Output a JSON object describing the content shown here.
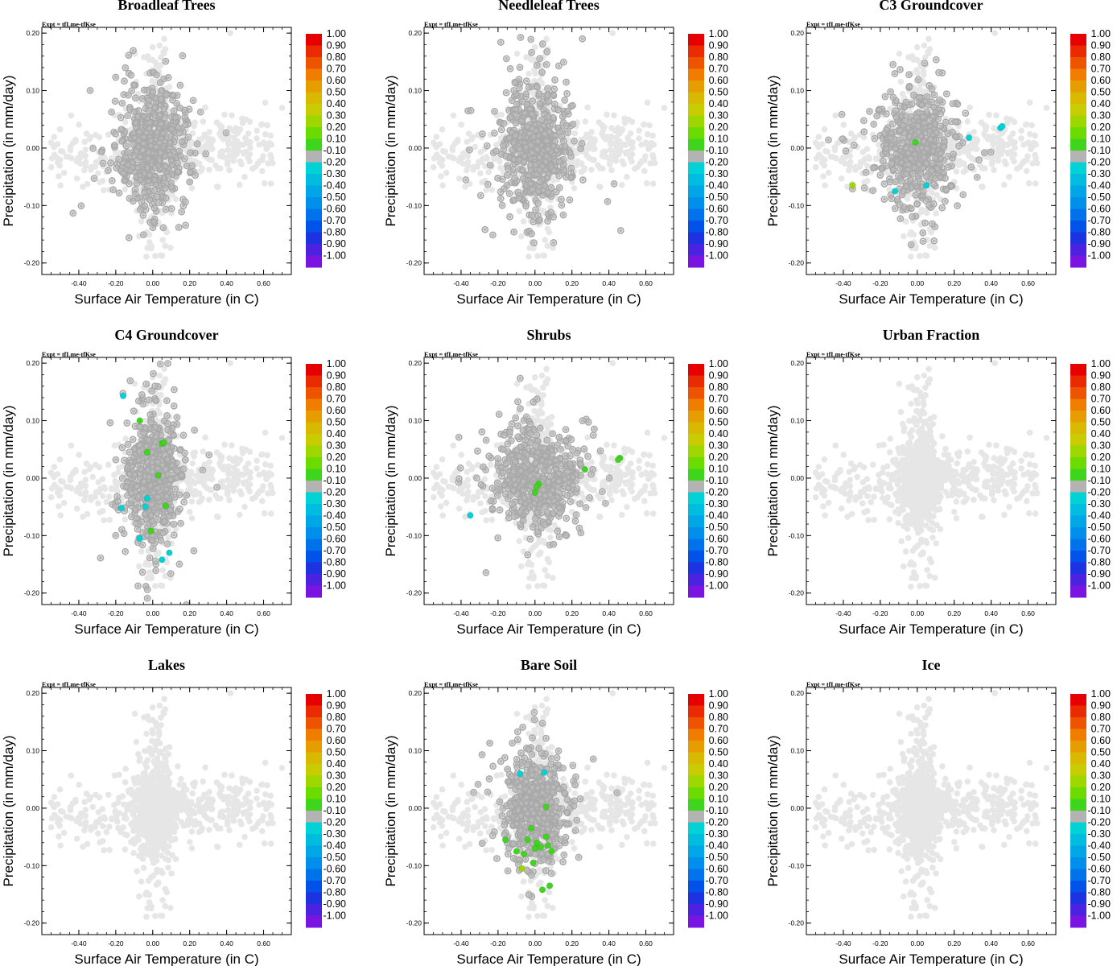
{
  "figure": {
    "expt_label": "Expt = tfLme-tfKse",
    "xlabel": "Surface Air Temperature (in C)",
    "ylabel": "Precipitation (in mm/day)",
    "colors": {
      "point_light": "#e6e6e6",
      "point_dark": "#a9a9a9",
      "axis": "#000000"
    }
  },
  "chart_data": [
    {
      "type": "scatter",
      "title": "Broadleaf Trees",
      "xlabel": "Surface Air Temperature (in C)",
      "ylabel": "Precipitation (in mm/day)",
      "xlim": [
        -0.6,
        0.75
      ],
      "ylim": [
        -0.22,
        0.21
      ],
      "xticks": [
        "-0.40",
        "-0.20",
        "0.00",
        "0.20",
        "0.40",
        "0.60"
      ],
      "yticks": [
        "-0.20",
        "-0.10",
        "0.00",
        "0.10",
        "0.20"
      ],
      "background_cloud": "light-grey, all grid cells",
      "dark_spread": [
        0.09,
        0.055
      ],
      "highlights": []
    },
    {
      "type": "scatter",
      "title": "Needleleaf Trees",
      "xlabel": "Surface Air Temperature (in C)",
      "ylabel": "Precipitation (in mm/day)",
      "xlim": [
        -0.6,
        0.75
      ],
      "ylim": [
        -0.22,
        0.21
      ],
      "xticks": [
        "-0.40",
        "-0.20",
        "0.00",
        "0.20",
        "0.40",
        "0.60"
      ],
      "yticks": [
        "-0.20",
        "-0.10",
        "0.00",
        "0.10",
        "0.20"
      ],
      "background_cloud": "light-grey, all grid cells",
      "dark_spread": [
        0.09,
        0.055
      ],
      "highlights": []
    },
    {
      "type": "scatter",
      "title": "C3 Groundcover",
      "xlabel": "Surface Air Temperature (in C)",
      "ylabel": "Precipitation (in mm/day)",
      "xlim": [
        -0.6,
        0.75
      ],
      "ylim": [
        -0.22,
        0.21
      ],
      "xticks": [
        "-0.40",
        "-0.20",
        "0.00",
        "0.20",
        "0.40",
        "0.60"
      ],
      "yticks": [
        "-0.20",
        "-0.10",
        "0.00",
        "0.10",
        "0.20"
      ],
      "background_cloud": "light-grey, all grid cells",
      "dark_spread": [
        0.1,
        0.045
      ],
      "highlights": [
        {
          "x": -0.01,
          "y": 0.01,
          "corr": 0.15
        },
        {
          "x": -0.35,
          "y": -0.065,
          "corr": 0.35
        },
        {
          "x": 0.45,
          "y": 0.035,
          "corr": -0.2
        },
        {
          "x": 0.46,
          "y": 0.038,
          "corr": -0.2
        },
        {
          "x": -0.12,
          "y": -0.075,
          "corr": -0.2
        },
        {
          "x": 0.05,
          "y": -0.065,
          "corr": -0.2
        },
        {
          "x": 0.28,
          "y": 0.018,
          "corr": -0.2
        }
      ]
    },
    {
      "type": "scatter",
      "title": "C4 Groundcover",
      "xlabel": "Surface Air Temperature (in C)",
      "ylabel": "Precipitation (in mm/day)",
      "xlim": [
        -0.6,
        0.75
      ],
      "ylim": [
        -0.22,
        0.21
      ],
      "xticks": [
        "-0.40",
        "-0.20",
        "0.00",
        "0.20",
        "0.40",
        "0.60"
      ],
      "yticks": [
        "-0.20",
        "-0.10",
        "0.00",
        "0.10",
        "0.20"
      ],
      "background_cloud": "light-grey, all grid cells",
      "dark_spread": [
        0.075,
        0.06
      ],
      "highlights": [
        {
          "x": -0.07,
          "y": 0.1,
          "corr": 0.15
        },
        {
          "x": 0.05,
          "y": 0.06,
          "corr": 0.15
        },
        {
          "x": 0.06,
          "y": 0.062,
          "corr": 0.15
        },
        {
          "x": -0.03,
          "y": 0.045,
          "corr": 0.15
        },
        {
          "x": 0.03,
          "y": 0.005,
          "corr": 0.15
        },
        {
          "x": 0.07,
          "y": -0.048,
          "corr": 0.15
        },
        {
          "x": -0.01,
          "y": -0.092,
          "corr": 0.15
        },
        {
          "x": -0.16,
          "y": 0.143,
          "corr": -0.2
        },
        {
          "x": -0.17,
          "y": -0.052,
          "corr": -0.2
        },
        {
          "x": -0.04,
          "y": -0.05,
          "corr": -0.2
        },
        {
          "x": -0.07,
          "y": -0.105,
          "corr": -0.2
        },
        {
          "x": 0.05,
          "y": -0.142,
          "corr": -0.2
        },
        {
          "x": 0.09,
          "y": -0.13,
          "corr": -0.2
        },
        {
          "x": -0.03,
          "y": -0.035,
          "corr": -0.2
        }
      ]
    },
    {
      "type": "scatter",
      "title": "Shrubs",
      "xlabel": "Surface Air Temperature (in C)",
      "ylabel": "Precipitation (in mm/day)",
      "xlim": [
        -0.6,
        0.75
      ],
      "ylim": [
        -0.22,
        0.21
      ],
      "xticks": [
        "-0.40",
        "-0.20",
        "0.00",
        "0.20",
        "0.40",
        "0.60"
      ],
      "yticks": [
        "-0.20",
        "-0.10",
        "0.00",
        "0.10",
        "0.20"
      ],
      "background_cloud": "light-grey, all grid cells",
      "dark_spread": [
        0.12,
        0.045
      ],
      "highlights": [
        {
          "x": 0.46,
          "y": 0.035,
          "corr": 0.15
        },
        {
          "x": 0.45,
          "y": 0.032,
          "corr": 0.15
        },
        {
          "x": 0.27,
          "y": 0.015,
          "corr": 0.15
        },
        {
          "x": 0.02,
          "y": -0.01,
          "corr": 0.15
        },
        {
          "x": 0.01,
          "y": -0.015,
          "corr": 0.15
        },
        {
          "x": 0.0,
          "y": -0.025,
          "corr": 0.15
        },
        {
          "x": -0.35,
          "y": -0.065,
          "corr": -0.2
        }
      ]
    },
    {
      "type": "scatter",
      "title": "Urban Fraction",
      "xlabel": "Surface Air Temperature (in C)",
      "ylabel": "Precipitation (in mm/day)",
      "xlim": [
        -0.6,
        0.75
      ],
      "ylim": [
        -0.22,
        0.21
      ],
      "xticks": [
        "-0.40",
        "-0.20",
        "0.00",
        "0.20",
        "0.40",
        "0.60"
      ],
      "yticks": [
        "-0.20",
        "-0.10",
        "0.00",
        "0.10",
        "0.20"
      ],
      "background_cloud": "light-grey, all grid cells",
      "dark_spread": null,
      "highlights": []
    },
    {
      "type": "scatter",
      "title": "Lakes",
      "xlabel": "Surface Air Temperature (in C)",
      "ylabel": "Precipitation (in mm/day)",
      "xlim": [
        -0.6,
        0.75
      ],
      "ylim": [
        -0.22,
        0.21
      ],
      "xticks": [
        "-0.40",
        "-0.20",
        "0.00",
        "0.20",
        "0.40",
        "0.60"
      ],
      "yticks": [
        "-0.20",
        "-0.10",
        "0.00",
        "0.10",
        "0.20"
      ],
      "background_cloud": "light-grey, all grid cells",
      "dark_spread": null,
      "highlights": []
    },
    {
      "type": "scatter",
      "title": "Bare Soil",
      "xlabel": "Surface Air Temperature (in C)",
      "ylabel": "Precipitation (in mm/day)",
      "xlim": [
        -0.6,
        0.75
      ],
      "ylim": [
        -0.22,
        0.21
      ],
      "xticks": [
        "-0.40",
        "-0.20",
        "0.00",
        "0.20",
        "0.40",
        "0.60"
      ],
      "yticks": [
        "-0.20",
        "-0.10",
        "0.00",
        "0.10",
        "0.20"
      ],
      "background_cloud": "light-grey, all grid cells",
      "dark_spread": [
        0.08,
        0.045
      ],
      "highlights": [
        {
          "x": 0.06,
          "y": 0.002,
          "corr": 0.15
        },
        {
          "x": -0.16,
          "y": -0.055,
          "corr": 0.15
        },
        {
          "x": -0.1,
          "y": -0.075,
          "corr": 0.15
        },
        {
          "x": -0.04,
          "y": -0.055,
          "corr": 0.15
        },
        {
          "x": -0.02,
          "y": -0.035,
          "corr": 0.15
        },
        {
          "x": 0.01,
          "y": -0.06,
          "corr": 0.15
        },
        {
          "x": 0.06,
          "y": -0.05,
          "corr": 0.15
        },
        {
          "x": 0.0,
          "y": -0.07,
          "corr": 0.15
        },
        {
          "x": 0.03,
          "y": -0.068,
          "corr": 0.15
        },
        {
          "x": 0.07,
          "y": -0.065,
          "corr": 0.15
        },
        {
          "x": 0.09,
          "y": -0.075,
          "corr": 0.15
        },
        {
          "x": -0.06,
          "y": -0.08,
          "corr": 0.15
        },
        {
          "x": -0.01,
          "y": -0.095,
          "corr": 0.15
        },
        {
          "x": -0.07,
          "y": -0.105,
          "corr": 0.35
        },
        {
          "x": 0.04,
          "y": -0.142,
          "corr": 0.15
        },
        {
          "x": 0.08,
          "y": -0.135,
          "corr": 0.15
        },
        {
          "x": -0.08,
          "y": 0.06,
          "corr": -0.2
        },
        {
          "x": 0.05,
          "y": 0.062,
          "corr": -0.2
        }
      ]
    },
    {
      "type": "scatter",
      "title": "Ice",
      "xlabel": "Surface Air Temperature (in C)",
      "ylabel": "Precipitation (in mm/day)",
      "xlim": [
        -0.6,
        0.75
      ],
      "ylim": [
        -0.22,
        0.21
      ],
      "xticks": [
        "-0.40",
        "-0.20",
        "0.00",
        "0.20",
        "0.40",
        "0.60"
      ],
      "yticks": [
        "-0.20",
        "-0.10",
        "0.00",
        "0.10",
        "0.20"
      ],
      "background_cloud": "light-grey, all grid cells",
      "dark_spread": null,
      "highlights": []
    }
  ],
  "colorbar": {
    "labels": [
      "1.00",
      "0.90",
      "0.80",
      "0.70",
      "0.60",
      "0.50",
      "0.40",
      "0.30",
      "0.20",
      "0.10",
      "-0.10",
      "-0.20",
      "-0.30",
      "-0.40",
      "-0.50",
      "-0.60",
      "-0.70",
      "-0.80",
      "-0.90",
      "-1.00"
    ],
    "colors": [
      "#e60000",
      "#ea2a00",
      "#ee5300",
      "#f07d00",
      "#e59d00",
      "#d8b800",
      "#c8cc00",
      "#9ed600",
      "#6cdc00",
      "#3ed51c",
      "#b3b3b3",
      "#00d2d6",
      "#00bde0",
      "#00a6e6",
      "#0090eb",
      "#0072ec",
      "#0052e8",
      "#1d32e0",
      "#4a22e0",
      "#7a14e0"
    ]
  }
}
